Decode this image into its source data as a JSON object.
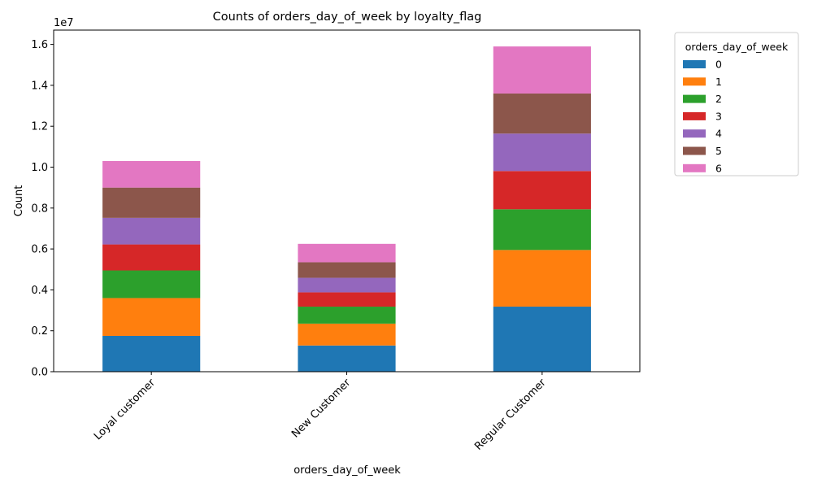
{
  "chart_data": {
    "type": "bar",
    "stacked": true,
    "title": "Counts of orders_day_of_week by loyalty_flag",
    "xlabel": "orders_day_of_week",
    "ylabel": "Count",
    "y_multiplier": "1e7",
    "y_scale": 10000000,
    "ylim": [
      0,
      1.67
    ],
    "yticks": [
      "0.0",
      "0.2",
      "0.4",
      "0.6",
      "0.8",
      "1.0",
      "1.2",
      "1.4",
      "1.6"
    ],
    "categories": [
      "Loyal customer",
      "New Customer",
      "Regular Customer"
    ],
    "grid": false,
    "legend": {
      "title": "orders_day_of_week",
      "placement": "outside-top-right"
    },
    "series": [
      {
        "name": "0",
        "color": "#1f77b4",
        "values": [
          0.175,
          0.128,
          0.318
        ]
      },
      {
        "name": "1",
        "color": "#ff7f0e",
        "values": [
          0.185,
          0.107,
          0.277
        ]
      },
      {
        "name": "2",
        "color": "#2ca02c",
        "values": [
          0.135,
          0.083,
          0.199
        ]
      },
      {
        "name": "3",
        "color": "#d62728",
        "values": [
          0.127,
          0.07,
          0.187
        ]
      },
      {
        "name": "4",
        "color": "#9467bd",
        "values": [
          0.13,
          0.071,
          0.183
        ]
      },
      {
        "name": "5",
        "color": "#8c564b",
        "values": [
          0.148,
          0.076,
          0.196
        ]
      },
      {
        "name": "6",
        "color": "#e377c2",
        "values": [
          0.13,
          0.09,
          0.23
        ]
      }
    ]
  }
}
